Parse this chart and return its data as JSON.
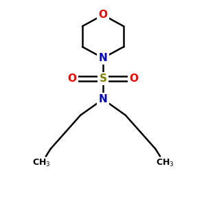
{
  "bg_color": "#ffffff",
  "atom_colors": {
    "C": "#000000",
    "N": "#0000cc",
    "O": "#ff0000",
    "S": "#808000"
  },
  "bond_color": "#000000",
  "bond_width": 1.8,
  "font_size_atom": 11,
  "font_size_label": 9,
  "figsize": [
    3.0,
    3.0
  ],
  "dpi": 100,
  "xlim": [
    0,
    10
  ],
  "ylim": [
    0,
    11
  ]
}
